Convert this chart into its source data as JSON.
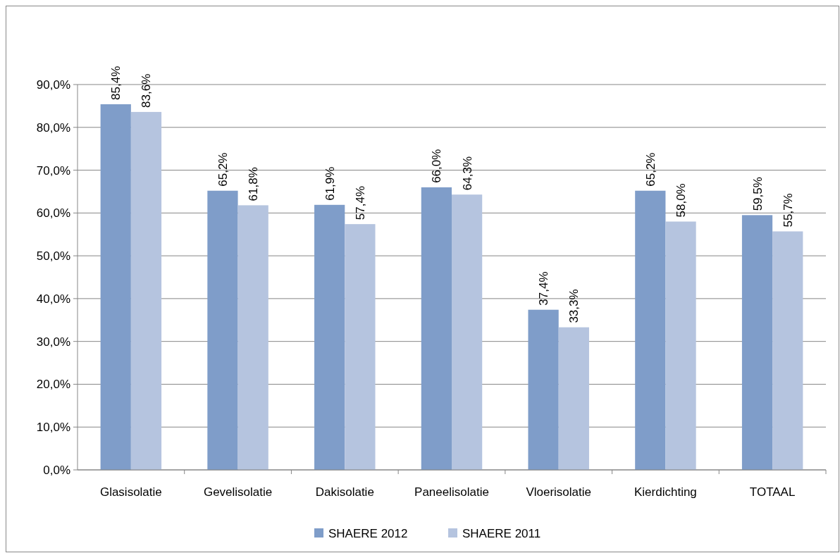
{
  "chart_data": {
    "type": "bar",
    "categories": [
      "Glasisolatie",
      "Gevelisolatie",
      "Dakisolatie",
      "Paneelisolatie",
      "Vloerisolatie",
      "Kierdichting",
      "TOTAAL"
    ],
    "series": [
      {
        "name": "SHAERE 2012",
        "color": "#7f9dc9",
        "values": [
          85.4,
          65.2,
          61.9,
          66.0,
          37.4,
          65.2,
          59.5
        ],
        "value_labels": [
          "85,4%",
          "65,2%",
          "61,9%",
          "66,0%",
          "37,4%",
          "65,2%",
          "59,5%"
        ]
      },
      {
        "name": "SHAERE 2011",
        "color": "#b5c4df",
        "values": [
          83.6,
          61.8,
          57.4,
          64.3,
          33.3,
          58.0,
          55.7
        ],
        "value_labels": [
          "83,6%",
          "61,8%",
          "57,4%",
          "64,3%",
          "33,3%",
          "58,0%",
          "55,7%"
        ]
      }
    ],
    "ylim": [
      0,
      90
    ],
    "yticks": [
      {
        "value": 0,
        "label": "0,0%"
      },
      {
        "value": 10,
        "label": "10,0%"
      },
      {
        "value": 20,
        "label": "20,0%"
      },
      {
        "value": 30,
        "label": "30,0%"
      },
      {
        "value": 40,
        "label": "40,0%"
      },
      {
        "value": 50,
        "label": "50,0%"
      },
      {
        "value": 60,
        "label": "60,0%"
      },
      {
        "value": 70,
        "label": "70,0%"
      },
      {
        "value": 80,
        "label": "80,0%"
      },
      {
        "value": 90,
        "label": "90,0%"
      }
    ],
    "grid": "y",
    "legend": "bottom"
  }
}
